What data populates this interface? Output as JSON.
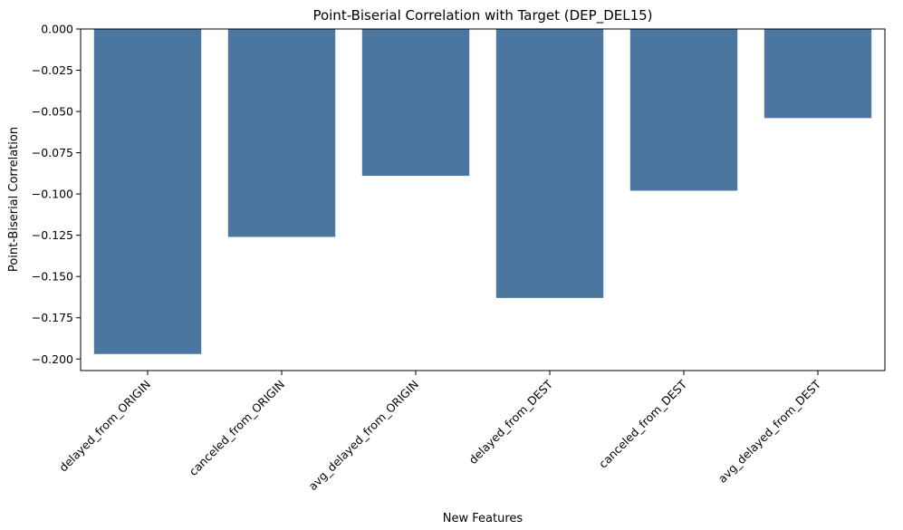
{
  "chart_data": {
    "type": "bar",
    "title": "Point-Biserial Correlation with Target (DEP_DEL15)",
    "xlabel": "New Features",
    "ylabel": "Point-Biserial Correlation",
    "categories": [
      "delayed_from_ORIGIN",
      "canceled_from_ORIGIN",
      "avg_delayed_from_ORIGIN",
      "delayed_from_DEST",
      "canceled_from_DEST",
      "avg_delayed_from_DEST"
    ],
    "values": [
      -0.197,
      -0.126,
      -0.089,
      -0.163,
      -0.098,
      -0.054
    ],
    "ylim": [
      -0.207,
      0.0
    ],
    "yticks": [
      0.0,
      -0.025,
      -0.05,
      -0.075,
      -0.1,
      -0.125,
      -0.15,
      -0.175,
      -0.2
    ],
    "ytick_labels": [
      "0.000",
      "−0.025",
      "−0.050",
      "−0.075",
      "−0.100",
      "−0.125",
      "−0.150",
      "−0.175",
      "−0.200"
    ],
    "bar_color": "#4a76a0",
    "grid": false,
    "legend": "none"
  }
}
